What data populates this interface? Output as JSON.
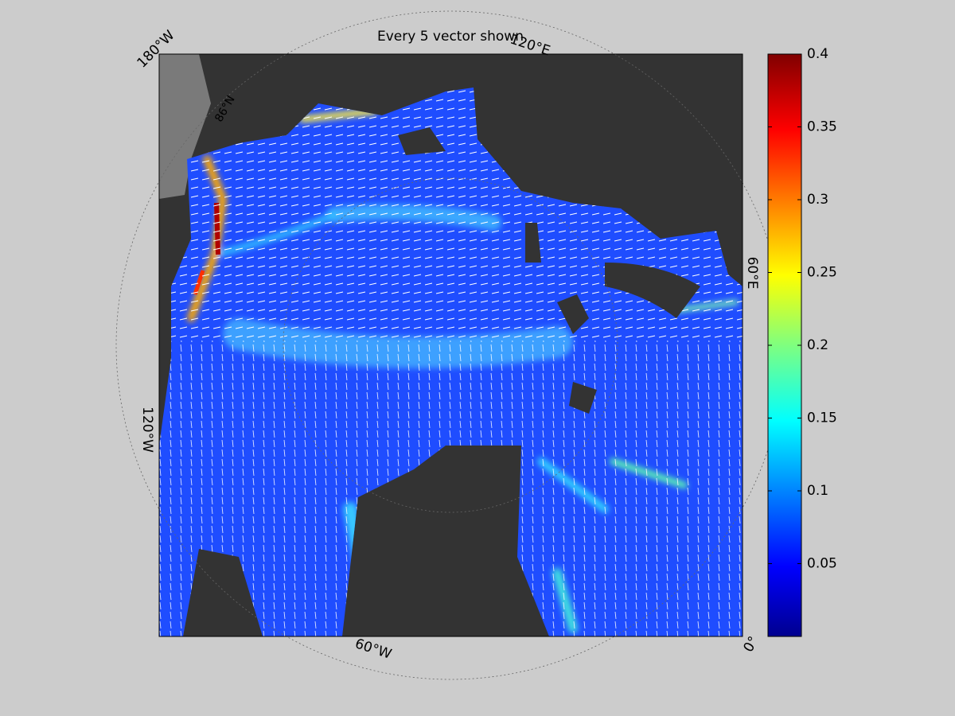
{
  "title": "Every 5 vector shown",
  "map_labels": [
    "180°W",
    "120°E",
    "60°E",
    "0°",
    "60°W",
    "120°W",
    "86°N"
  ],
  "colorbar": {
    "lim": [
      0,
      0.4
    ],
    "ticks": [
      0.05,
      0.1,
      0.15,
      0.2,
      0.25,
      0.3,
      0.35,
      0.4
    ]
  }
}
